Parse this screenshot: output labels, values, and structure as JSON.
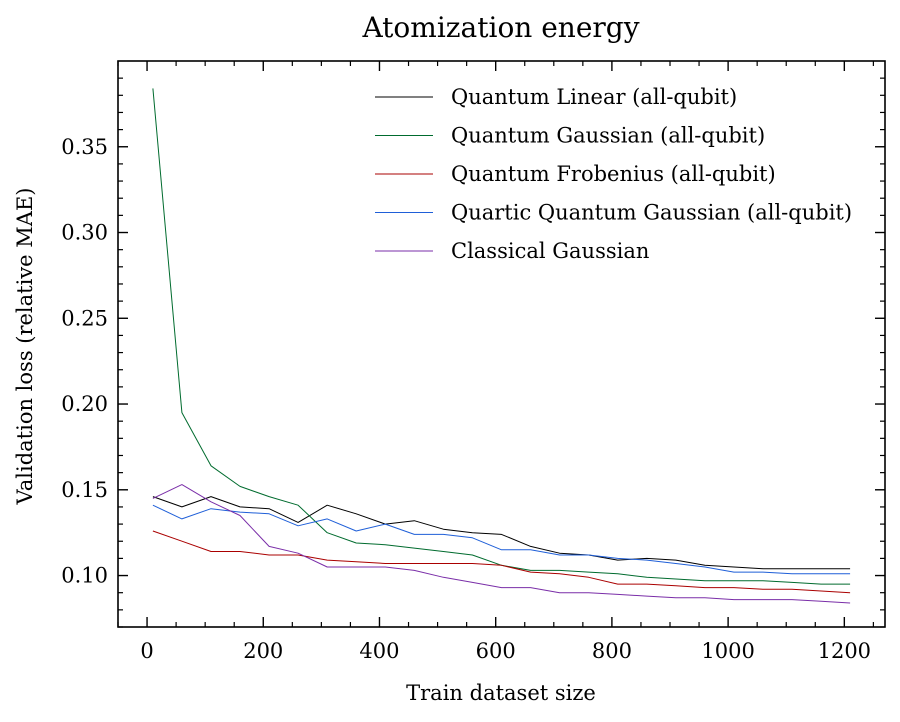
{
  "chart_data": {
    "type": "line",
    "title": "Atomization energy",
    "xlabel": "Train dataset size",
    "ylabel": "Validation loss (relative MAE)",
    "xlim": [
      -50,
      1270
    ],
    "ylim": [
      0.07,
      0.4
    ],
    "xticks": [
      0,
      200,
      400,
      600,
      800,
      1000,
      1200
    ],
    "xtick_labels": [
      "0",
      "200",
      "400",
      "600",
      "800",
      "1000",
      "1200"
    ],
    "yticks": [
      0.1,
      0.15,
      0.2,
      0.25,
      0.3,
      0.35
    ],
    "ytick_labels": [
      "0.10",
      "0.15",
      "0.20",
      "0.25",
      "0.30",
      "0.35"
    ],
    "grid": false,
    "legend_position": "top-right",
    "x": [
      10,
      60,
      110,
      160,
      210,
      260,
      310,
      360,
      410,
      460,
      510,
      560,
      610,
      660,
      710,
      760,
      810,
      860,
      910,
      960,
      1010,
      1060,
      1110,
      1160,
      1210
    ],
    "series": [
      {
        "name": "Quantum Linear (all-qubit)",
        "color": "#000000",
        "values": [
          0.146,
          0.14,
          0.146,
          0.14,
          0.139,
          0.131,
          0.141,
          0.136,
          0.13,
          0.132,
          0.127,
          0.125,
          0.124,
          0.117,
          0.113,
          0.112,
          0.109,
          0.11,
          0.109,
          0.106,
          0.105,
          0.104,
          0.104,
          0.104,
          0.104
        ]
      },
      {
        "name": "Quantum Gaussian (all-qubit)",
        "color": "#006b2e",
        "values": [
          0.384,
          0.195,
          0.164,
          0.152,
          0.146,
          0.141,
          0.125,
          0.119,
          0.118,
          0.116,
          0.114,
          0.112,
          0.106,
          0.103,
          0.103,
          0.102,
          0.101,
          0.099,
          0.098,
          0.097,
          0.097,
          0.097,
          0.096,
          0.095,
          0.095
        ]
      },
      {
        "name": "Quantum Frobenius (all-qubit)",
        "color": "#aa0000",
        "values": [
          0.126,
          0.12,
          0.114,
          0.114,
          0.112,
          0.112,
          0.109,
          0.108,
          0.107,
          0.107,
          0.107,
          0.107,
          0.106,
          0.102,
          0.101,
          0.099,
          0.095,
          0.095,
          0.094,
          0.093,
          0.093,
          0.092,
          0.092,
          0.091,
          0.09
        ]
      },
      {
        "name": "Quartic Quantum Gaussian (all-qubit)",
        "color": "#1f5fd8",
        "values": [
          0.141,
          0.133,
          0.139,
          0.137,
          0.136,
          0.129,
          0.133,
          0.126,
          0.13,
          0.124,
          0.124,
          0.122,
          0.115,
          0.115,
          0.112,
          0.112,
          0.11,
          0.109,
          0.107,
          0.105,
          0.102,
          0.102,
          0.101,
          0.101,
          0.101
        ]
      },
      {
        "name": "Classical Gaussian",
        "color": "#7a2ea8",
        "values": [
          0.145,
          0.153,
          0.143,
          0.135,
          0.117,
          0.113,
          0.105,
          0.105,
          0.105,
          0.103,
          0.099,
          0.096,
          0.093,
          0.093,
          0.09,
          0.09,
          0.089,
          0.088,
          0.087,
          0.087,
          0.086,
          0.086,
          0.086,
          0.085,
          0.084
        ]
      }
    ]
  }
}
